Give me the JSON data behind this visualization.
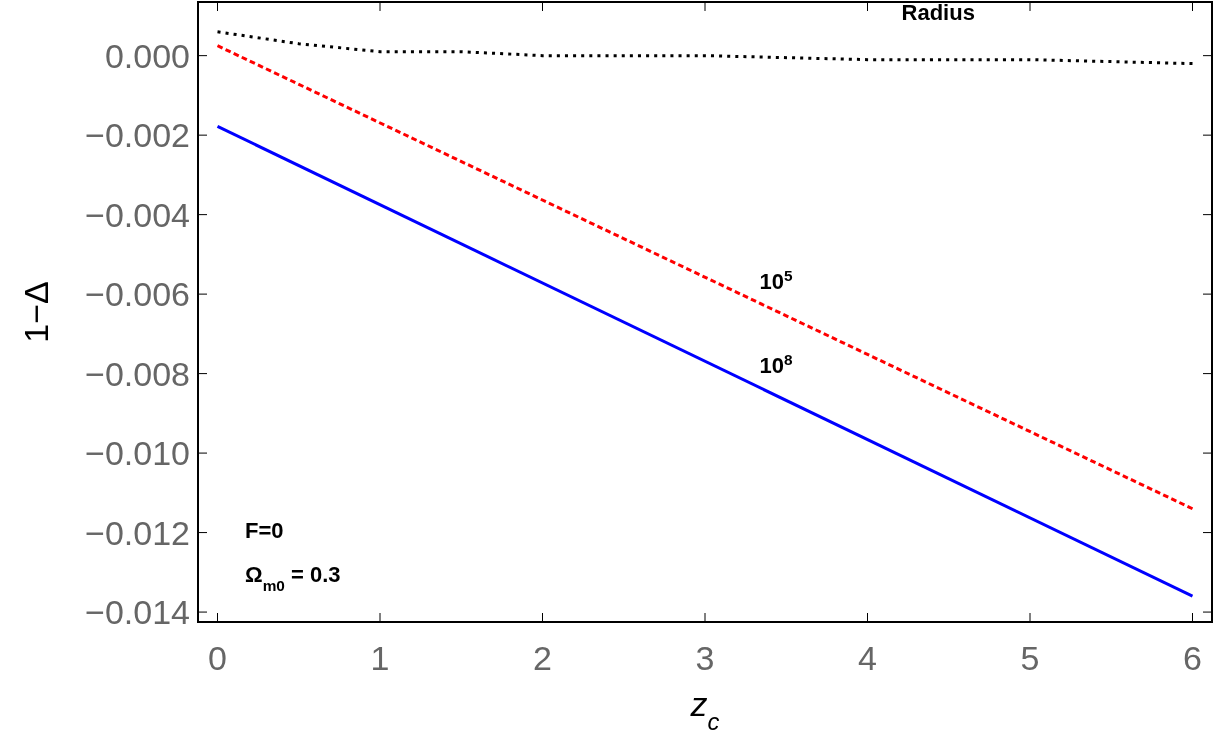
{
  "chart_data": {
    "type": "line",
    "xlabel": "z$_{c}$",
    "ylabel": "1−Δ",
    "xlim": [
      -0.12,
      6.12
    ],
    "ylim": [
      -0.01425,
      0.00135
    ],
    "xticks": [
      0,
      1,
      2,
      3,
      4,
      5,
      6
    ],
    "yticks": [
      {
        "value": 0,
        "label": "0.000"
      },
      {
        "value": -0.002,
        "label": "−0.002"
      },
      {
        "value": -0.004,
        "label": "−0.004"
      },
      {
        "value": -0.006,
        "label": "−0.006"
      },
      {
        "value": -0.008,
        "label": "−0.008"
      },
      {
        "value": -0.01,
        "label": "−0.010"
      },
      {
        "value": -0.012,
        "label": "−0.012"
      },
      {
        "value": -0.014,
        "label": "−0.014"
      }
    ],
    "grid": false,
    "series": [
      {
        "name": "Radius",
        "color": "#000000",
        "line_style": "dotted",
        "x": [
          0,
          0.5,
          1,
          1.5,
          2,
          3,
          4,
          5,
          6
        ],
        "values": [
          0.0006,
          0.0003,
          0.0001,
          0.0001,
          0,
          0,
          -0.0001,
          -0.0001,
          -0.0002
        ]
      },
      {
        "name": "10$^{5}$",
        "color": "#ff0000",
        "line_style": "dashed",
        "x": [
          0,
          6
        ],
        "values": [
          0.00025,
          -0.0114
        ]
      },
      {
        "name": "10$^{8}$",
        "color": "#0000ff",
        "line_style": "solid",
        "x": [
          0,
          6
        ],
        "values": [
          -0.00178,
          -0.0136
        ]
      }
    ],
    "annotations": [
      "F=0",
      "Ω$_{m0}$ = 0.3"
    ]
  }
}
